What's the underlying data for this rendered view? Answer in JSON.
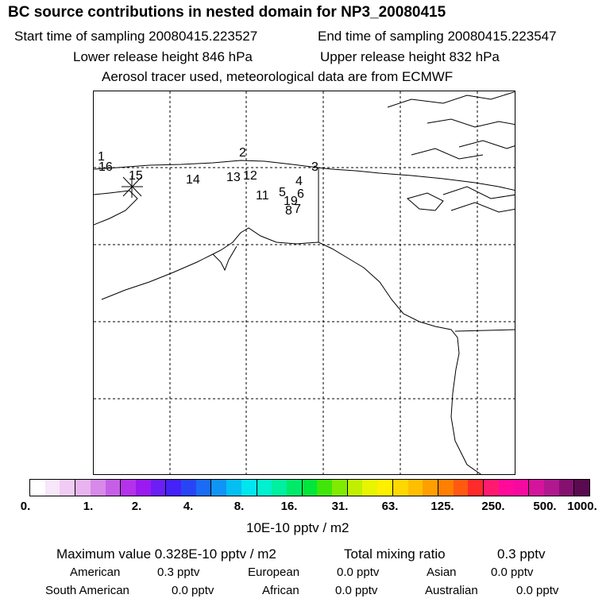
{
  "title": "BC  source contributions in nested domain for NP3_20080415",
  "header": {
    "start_time": "Start time of sampling 20080415.223527",
    "end_time": "End time of sampling 20080415.223547",
    "lower_release": "Lower release height  846 hPa",
    "upper_release": "Upper release height  832 hPa",
    "tracer_note": "Aerosol tracer used, meteorological data are from ECMWF"
  },
  "map": {
    "labels": [
      "1",
      "16",
      "15",
      "14",
      "2",
      "13",
      "12",
      "11",
      "5",
      "19",
      "8",
      "7",
      "6",
      "4",
      "3"
    ]
  },
  "colorbar": {
    "colors": [
      "#ffffff",
      "#f8e6fa",
      "#f0ccf4",
      "#e8b3ee",
      "#d78ae8",
      "#c560e6",
      "#b433ea",
      "#9b1af0",
      "#6b1ff5",
      "#4422f8",
      "#2845f5",
      "#1a6cf5",
      "#0f95f5",
      "#05bff2",
      "#00e6ef",
      "#00f0d0",
      "#00f0a0",
      "#00ea6a",
      "#00e63a",
      "#40e60a",
      "#80ea00",
      "#c0f000",
      "#e8f500",
      "#fff000",
      "#ffd800",
      "#ffbf00",
      "#ffa000",
      "#ff7f00",
      "#ff5a10",
      "#ff2a2a",
      "#ff1a70",
      "#ff0a9a",
      "#f50aa0",
      "#d4149a",
      "#b01890",
      "#861070",
      "#5a0a50"
    ],
    "ticks": [
      "0.",
      "1.",
      "2.",
      "4.",
      "8.",
      "16.",
      "31.",
      "63.",
      "125.",
      "250.",
      "500.",
      "1000."
    ],
    "units": "10E-10 pptv / m2"
  },
  "stats": {
    "max_value": "Maximum value  0.328E-10 pptv / m2",
    "total_mixing_label": "Total mixing ratio",
    "total_mixing_value": "0.3 pptv",
    "american_label": "American",
    "american_value": "0.3 pptv",
    "european_label": "European",
    "european_value": "0.0 pptv",
    "asian_label": "Asian",
    "asian_value": "0.0 pptv",
    "south_american_label": "South American",
    "south_american_value": "0.0 pptv",
    "african_label": "African",
    "african_value": "0.0 pptv",
    "australian_label": "Australian",
    "australian_value": "0.0 pptv"
  }
}
